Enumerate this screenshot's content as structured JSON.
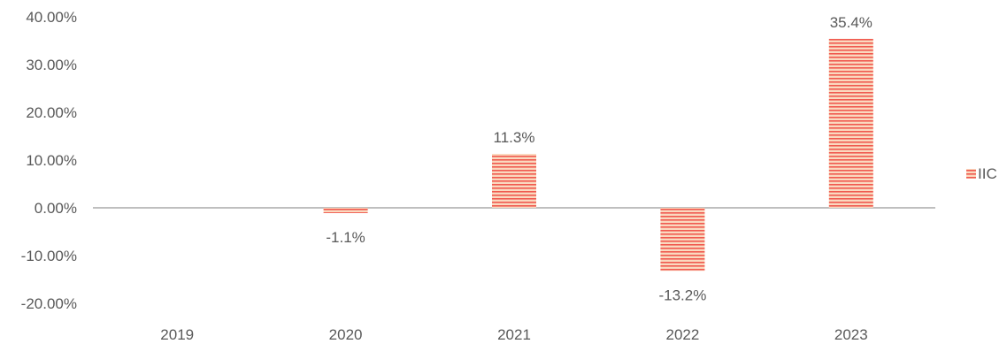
{
  "chart_data": {
    "type": "bar",
    "categories": [
      "2019",
      "2020",
      "2021",
      "2022",
      "2023"
    ],
    "series": [
      {
        "name": "IIC",
        "values": [
          null,
          -1.1,
          11.3,
          -13.2,
          35.4
        ],
        "labels": [
          "",
          "-1.1%",
          "11.3%",
          "-13.2%",
          "35.4%"
        ]
      }
    ],
    "yticks": [
      {
        "value": 40,
        "label": "40.00%"
      },
      {
        "value": 30,
        "label": "30.00%"
      },
      {
        "value": 20,
        "label": "20.00%"
      },
      {
        "value": 10,
        "label": "10.00%"
      },
      {
        "value": 0,
        "label": "0.00%"
      },
      {
        "value": -10,
        "label": "-10.00%"
      },
      {
        "value": -20,
        "label": "-20.00%"
      }
    ],
    "ylim": [
      -20,
      40
    ],
    "grid": false,
    "legend_position": "right",
    "colors": {
      "bar_fill": "#fad9bf",
      "bar_stripe": "#f05a4f",
      "axis": "#bfbfbf",
      "text": "#595959"
    }
  }
}
